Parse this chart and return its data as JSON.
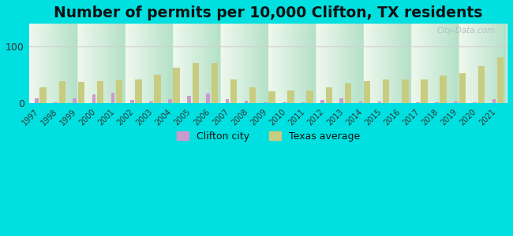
{
  "title": "Number of permits per 10,000 Clifton, TX residents",
  "years": [
    1997,
    1998,
    1999,
    2000,
    2001,
    2002,
    2003,
    2004,
    2005,
    2006,
    2007,
    2008,
    2009,
    2010,
    2011,
    2012,
    2013,
    2014,
    2015,
    2016,
    2017,
    2018,
    2019,
    2020,
    2021
  ],
  "clifton": [
    8,
    1,
    8,
    15,
    18,
    5,
    2,
    7,
    12,
    17,
    7,
    4,
    1,
    1,
    1,
    5,
    8,
    2,
    3,
    0,
    1,
    1,
    2,
    1,
    7
  ],
  "texas": [
    28,
    38,
    37,
    38,
    40,
    42,
    50,
    62,
    70,
    70,
    42,
    27,
    20,
    22,
    22,
    27,
    34,
    38,
    42,
    42,
    42,
    48,
    52,
    65,
    80
  ],
  "clifton_color": "#cc99cc",
  "texas_color": "#c8cc80",
  "background_outer": "#00e0e0",
  "ylim": [
    0,
    140
  ],
  "ytick_vals": [
    0,
    100
  ],
  "ytick_labels": [
    "0",
    "100"
  ],
  "grid_color": "#d0d0d0",
  "title_fontsize": 13.5,
  "watermark": "City-Data.com",
  "clifton_label": "Clifton city",
  "texas_label": "Texas average"
}
